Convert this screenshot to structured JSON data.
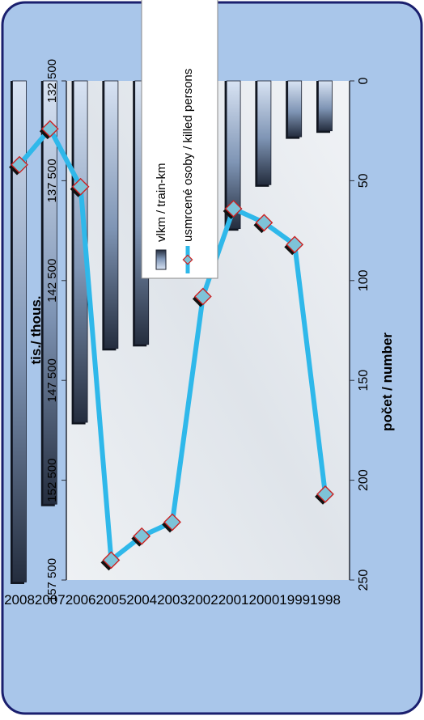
{
  "chart_data": {
    "type": "bar+line",
    "categories": [
      "1998",
      "1999",
      "2000",
      "2001",
      "2002",
      "2003",
      "2004",
      "2005",
      "2006",
      "2007",
      "2008"
    ],
    "series": [
      {
        "name": "vlkm / train-km",
        "kind": "bar",
        "axis": "left",
        "values": [
          135000,
          135300,
          137700,
          139900,
          138200,
          138200,
          145700,
          145900,
          149600,
          153700,
          157600
        ]
      },
      {
        "name": "usmrcené osoby / killed persons",
        "kind": "line",
        "axis": "right",
        "values": [
          207,
          82,
          71,
          64,
          108,
          221,
          228,
          240,
          53,
          24,
          42
        ]
      }
    ],
    "y_left": {
      "label": "tis./ thous.",
      "min": 132500,
      "max": 157500,
      "ticks": [
        "132 500",
        "137 500",
        "142 500",
        "147 500",
        "152 500",
        "157 500"
      ],
      "tick_values": [
        132500,
        137500,
        142500,
        147500,
        152500,
        157500
      ]
    },
    "y_right": {
      "label": "počet / number",
      "min": 0,
      "max": 250,
      "ticks": [
        "0",
        "50",
        "100",
        "150",
        "200",
        "250"
      ],
      "tick_values": [
        0,
        50,
        100,
        150,
        200,
        250
      ]
    },
    "legend": {
      "placement": "top-left",
      "entries": [
        "vlkm / train-km",
        "usmrcené osoby / killed persons"
      ]
    },
    "colors": {
      "background": "#a9c6ea",
      "frame": "#1a1f6e",
      "line": "#2fb8ea",
      "marker_fill": "#7ec3d8",
      "marker_edge": "#cc2222",
      "bar_dark": "#222a38",
      "bar_light": "#d8e3f3"
    },
    "grid": false
  }
}
